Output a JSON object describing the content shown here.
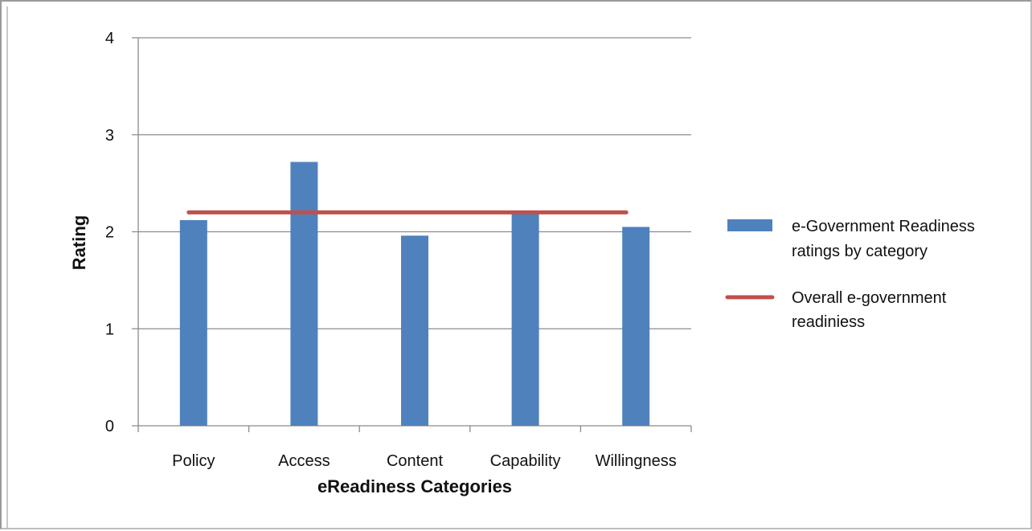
{
  "chart_data": {
    "type": "bar",
    "title": "",
    "xlabel": "eReadiness Categories",
    "ylabel": "Rating",
    "ylim": [
      0,
      4
    ],
    "yticks": [
      0,
      1,
      2,
      3,
      4
    ],
    "categories": [
      "Policy",
      "Access",
      "Content",
      "Capability",
      "Willingness"
    ],
    "series": [
      {
        "name": "e-Government Readiness ratings by category",
        "type": "bar",
        "color": "#4f81bd",
        "values": [
          2.12,
          2.72,
          1.96,
          2.2,
          2.05
        ]
      },
      {
        "name": "Overall e-government readiniess",
        "type": "line",
        "color": "#c0504d",
        "values": [
          2.2,
          2.2,
          2.2,
          2.2,
          2.2
        ]
      }
    ],
    "legend_lines": [
      [
        "e-Government Readiness",
        "ratings by category"
      ],
      [
        "Overall e-government",
        "readiniess"
      ]
    ],
    "grid": true,
    "legend_position": "right"
  }
}
